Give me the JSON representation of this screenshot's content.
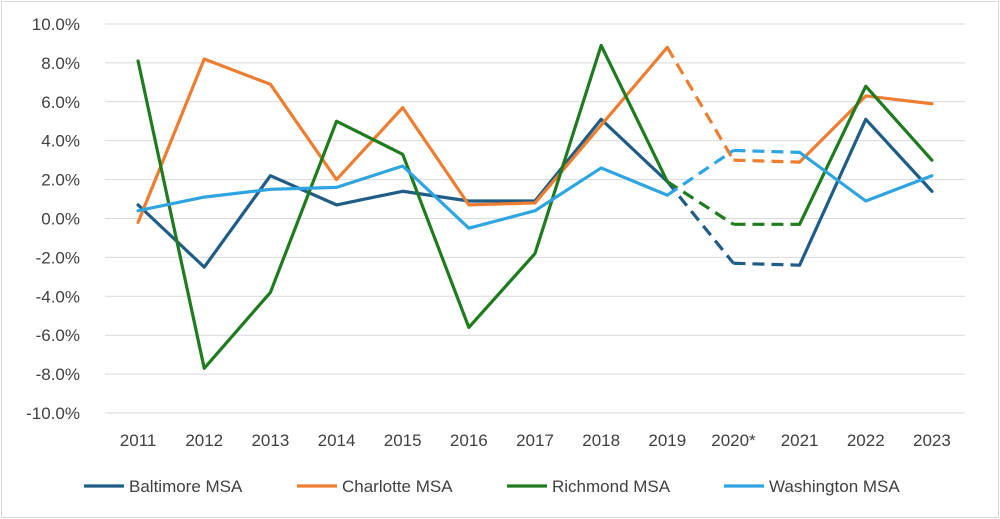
{
  "chart_data": {
    "type": "line",
    "title": "",
    "xlabel": "",
    "ylabel": "",
    "categories": [
      "2011",
      "2012",
      "2013",
      "2014",
      "2015",
      "2016",
      "2017",
      "2018",
      "2019",
      "2020*",
      "2021",
      "2022",
      "2023"
    ],
    "dashed_segments": [
      [
        8,
        9
      ],
      [
        9,
        10
      ]
    ],
    "ylim": [
      -10,
      10
    ],
    "ytick_values": [
      10,
      8,
      6,
      4,
      2,
      0,
      -2,
      -4,
      -6,
      -8,
      -10
    ],
    "ytick_labels": [
      "10.0%",
      "8.0%",
      "6.0%",
      "4.0%",
      "2.0%",
      "0.0%",
      "-2.0%",
      "-4.0%",
      "-6.0%",
      "-8.0%",
      "-10.0%"
    ],
    "grid": "horizontal",
    "legend_position": "bottom",
    "series": [
      {
        "name": "Baltimore MSA",
        "color": "#1f5c86",
        "values": [
          0.7,
          -2.5,
          2.2,
          0.7,
          1.4,
          0.9,
          0.9,
          5.1,
          1.9,
          -2.3,
          -2.4,
          5.1,
          1.4
        ]
      },
      {
        "name": "Charlotte MSA",
        "color": "#ed7d31",
        "values": [
          -0.2,
          8.2,
          6.9,
          2.0,
          5.7,
          0.7,
          0.8,
          4.8,
          8.8,
          3.0,
          2.9,
          6.3,
          5.9
        ]
      },
      {
        "name": "Richmond MSA",
        "color": "#1e7b1e",
        "values": [
          8.1,
          -7.7,
          -3.8,
          5.0,
          3.3,
          -5.6,
          -1.8,
          8.9,
          1.9,
          -0.3,
          -0.3,
          6.8,
          3.0
        ]
      },
      {
        "name": "Washington MSA",
        "color": "#2ea5e0",
        "values": [
          0.4,
          1.1,
          1.5,
          1.6,
          2.7,
          -0.5,
          0.4,
          2.6,
          1.2,
          3.5,
          3.4,
          0.9,
          2.2
        ]
      }
    ]
  }
}
